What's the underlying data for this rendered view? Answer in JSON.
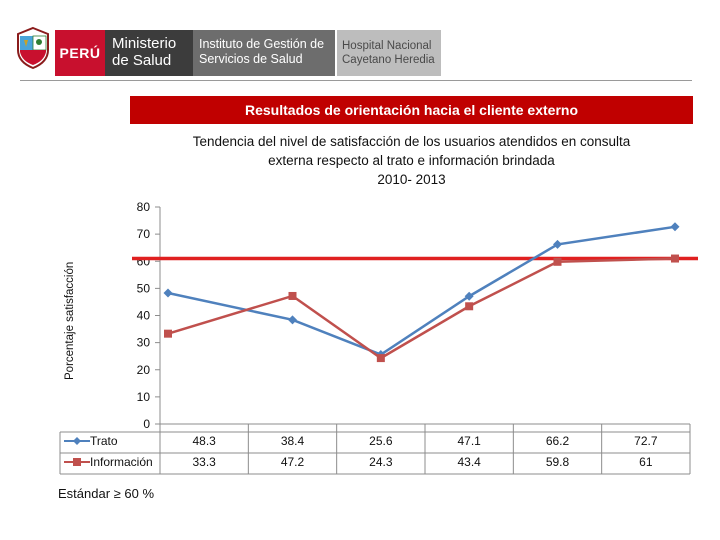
{
  "header": {
    "country": "PERÚ",
    "ministry_line1": "Ministerio",
    "ministry_line2": "de Salud",
    "institute_line1": "Instituto de Gestión de",
    "institute_line2": "Servicios de Salud",
    "hospital_line1": "Hospital Nacional",
    "hospital_line2": "Cayetano Heredia"
  },
  "banner": "Resultados de orientación hacia el cliente  externo",
  "chart_data": {
    "type": "line",
    "title_lines": [
      "Tendencia del nivel de satisfacción de los usuarios atendidos en consulta",
      "externa respecto al trato e información brindada",
      "2010- 2013"
    ],
    "ylabel": "Porcentaje satisfacción",
    "ylim": [
      0,
      80
    ],
    "yticks": [
      "0",
      "10",
      "20",
      "30",
      "40",
      "50",
      "60",
      "70",
      "80"
    ],
    "standard_line": 61,
    "standard_label": "Estándar ≥ 60 %",
    "series": [
      {
        "name": "Trato",
        "color": "#4f81bd",
        "values": [
          48.3,
          38.4,
          25.6,
          47.1,
          66.2,
          72.7
        ],
        "labels": [
          "48.3",
          "38.4",
          "25.6",
          "47.1",
          "66.2",
          "72.7"
        ]
      },
      {
        "name": "Información",
        "color": "#c0504d",
        "values": [
          33.3,
          47.2,
          24.3,
          43.4,
          59.8,
          61
        ],
        "labels": [
          "33.3",
          "47.2",
          "24.3",
          "43.4",
          "59.8",
          "61"
        ]
      }
    ],
    "reference_color": "#e02020"
  }
}
